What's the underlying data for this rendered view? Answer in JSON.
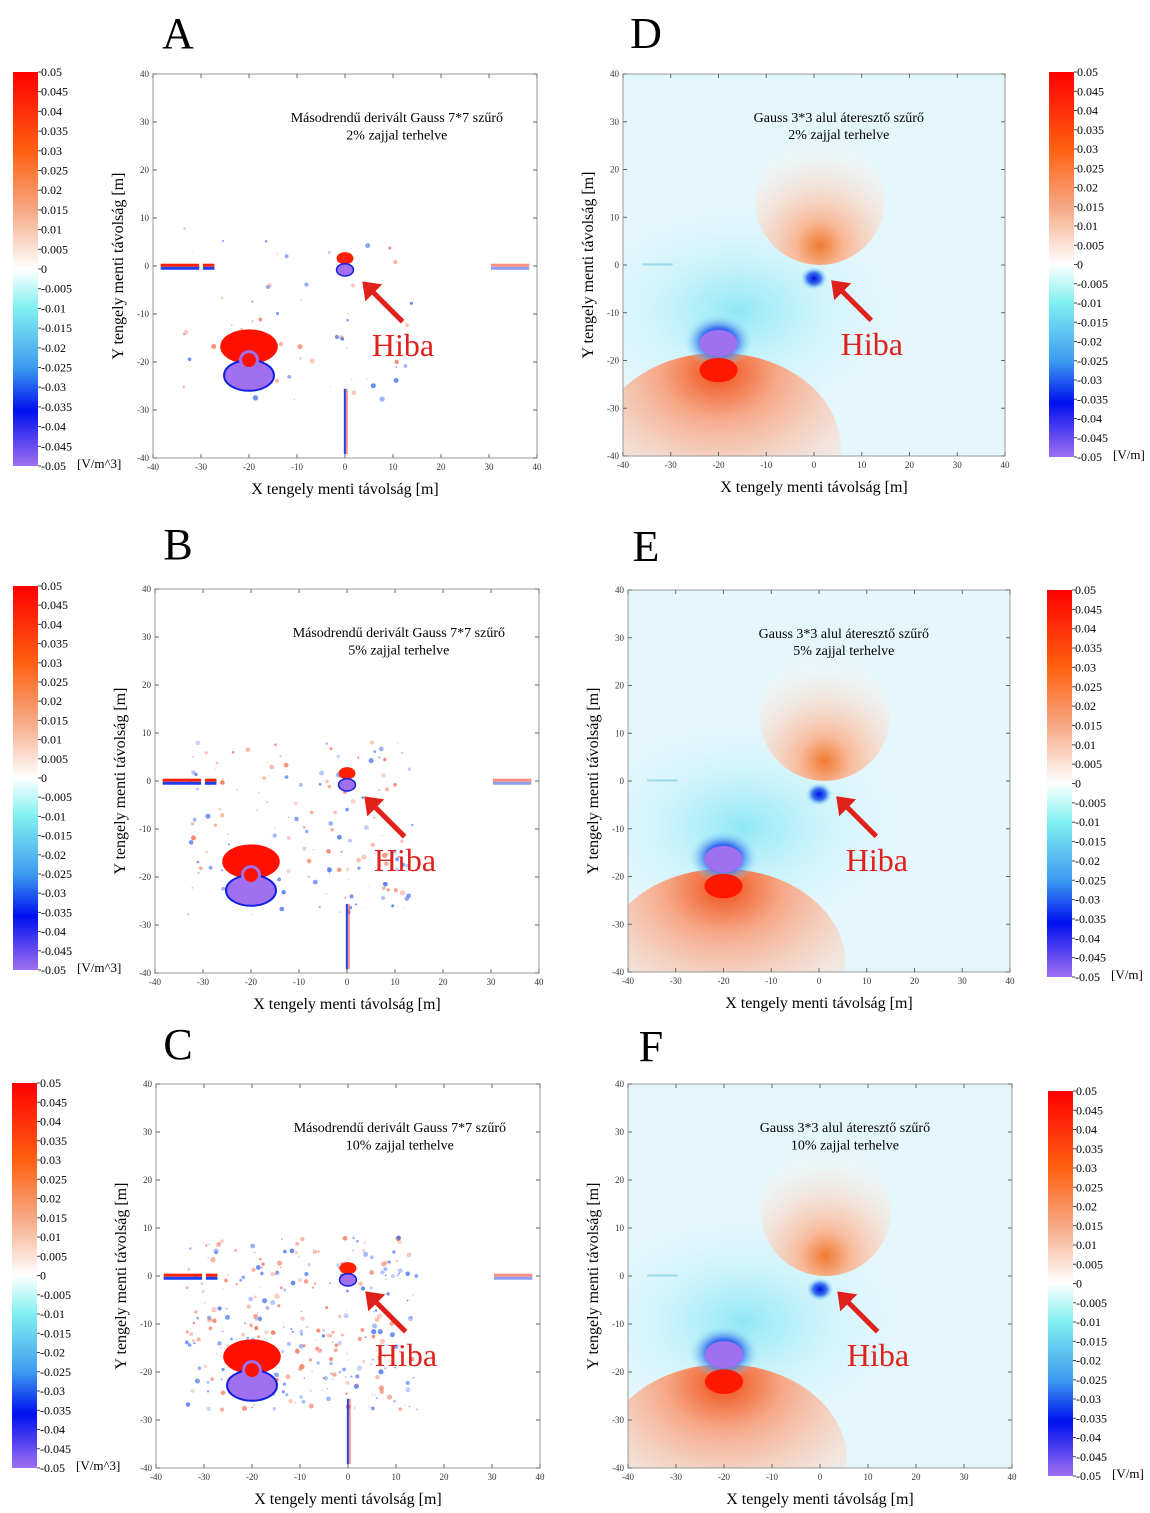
{
  "chart_data": [
    {
      "type": "heatmap",
      "title": "A",
      "annotation": [
        "Másodrendű derivált Gauss 7*7 szűrő",
        "2% zajjal terhelve"
      ],
      "arrow_label": "Hiba",
      "xlabel": "X tengely menti távolság [m]",
      "ylabel": "Y tengely menti távolság [m]",
      "xlim": [
        -40,
        40
      ],
      "ylim": [
        -40,
        40
      ],
      "xticks": [
        -40,
        -30,
        -20,
        -10,
        0,
        10,
        20,
        30,
        40
      ],
      "yticks": [
        -40,
        -30,
        -20,
        -10,
        0,
        10,
        20,
        30,
        40
      ],
      "clim": [
        -0.05,
        0.05
      ],
      "cticks": [
        0.05,
        0.045,
        0.04,
        0.035,
        0.03,
        0.025,
        0.02,
        0.015,
        0.01,
        0.005,
        0,
        -0.005,
        -0.01,
        -0.015,
        -0.02,
        -0.025,
        -0.03,
        -0.035,
        -0.04,
        -0.045,
        -0.05
      ],
      "colorbar_label": "[V/m^3]"
    },
    {
      "type": "heatmap",
      "title": "B",
      "annotation": [
        "Másodrendű derivált Gauss 7*7 szűrő",
        "5% zajjal terhelve"
      ],
      "arrow_label": "Hiba",
      "xlabel": "X tengely menti távolság [m]",
      "ylabel": "Y tengely menti távolság [m]",
      "xlim": [
        -40,
        40
      ],
      "ylim": [
        -40,
        40
      ],
      "xticks": [
        -40,
        -30,
        -20,
        -10,
        0,
        10,
        20,
        30,
        40
      ],
      "yticks": [
        -40,
        -30,
        -20,
        -10,
        0,
        10,
        20,
        30,
        40
      ],
      "clim": [
        -0.05,
        0.05
      ],
      "cticks": [
        0.05,
        0.045,
        0.04,
        0.035,
        0.03,
        0.025,
        0.02,
        0.015,
        0.01,
        0.005,
        0,
        -0.005,
        -0.01,
        -0.015,
        -0.02,
        -0.025,
        -0.03,
        -0.035,
        -0.04,
        -0.045,
        -0.05
      ],
      "colorbar_label": "[V/m^3]"
    },
    {
      "type": "heatmap",
      "title": "C",
      "annotation": [
        "Másodrendű derivált Gauss 7*7 szűrő",
        "10% zajjal terhelve"
      ],
      "arrow_label": "Hiba",
      "xlabel": "X tengely menti távolság [m]",
      "ylabel": "Y tengely menti távolság [m]",
      "xlim": [
        -40,
        40
      ],
      "ylim": [
        -40,
        40
      ],
      "xticks": [
        -40,
        -30,
        -20,
        -10,
        0,
        10,
        20,
        30,
        40
      ],
      "yticks": [
        -40,
        -30,
        -20,
        -10,
        0,
        10,
        20,
        30,
        40
      ],
      "clim": [
        -0.05,
        0.05
      ],
      "cticks": [
        0.05,
        0.045,
        0.04,
        0.035,
        0.03,
        0.025,
        0.02,
        0.015,
        0.01,
        0.005,
        0,
        -0.005,
        -0.01,
        -0.015,
        -0.02,
        -0.025,
        -0.03,
        -0.035,
        -0.04,
        -0.045,
        -0.05
      ],
      "colorbar_label": "[V/m^3]"
    },
    {
      "type": "heatmap",
      "title": "D",
      "annotation": [
        "Gauss 3*3 alul áteresztő szűrő",
        "2% zajjal terhelve"
      ],
      "arrow_label": "Hiba",
      "xlabel": "X tengely menti távolság [m]",
      "ylabel": "Y tengely menti távolság [m]",
      "xlim": [
        -40,
        40
      ],
      "ylim": [
        -40,
        40
      ],
      "xticks": [
        -40,
        -30,
        -20,
        -10,
        0,
        10,
        20,
        30,
        40
      ],
      "yticks": [
        -40,
        -30,
        -20,
        -10,
        0,
        10,
        20,
        30,
        40
      ],
      "clim": [
        -0.05,
        0.05
      ],
      "cticks": [
        0.05,
        0.045,
        0.04,
        0.035,
        0.03,
        0.025,
        0.02,
        0.015,
        0.01,
        0.005,
        0,
        -0.005,
        -0.01,
        -0.015,
        -0.02,
        -0.025,
        -0.03,
        -0.035,
        -0.04,
        -0.045,
        -0.05
      ],
      "colorbar_label": "[V/m]"
    },
    {
      "type": "heatmap",
      "title": "E",
      "annotation": [
        "Gauss 3*3 alul áteresztő szűrő",
        "5% zajjal terhelve"
      ],
      "arrow_label": "Hiba",
      "xlabel": "X tengely menti távolság [m]",
      "ylabel": "Y tengely menti távolság [m]",
      "xlim": [
        -40,
        40
      ],
      "ylim": [
        -40,
        40
      ],
      "xticks": [
        -40,
        -30,
        -20,
        -10,
        0,
        10,
        20,
        30,
        40
      ],
      "yticks": [
        -40,
        -30,
        -20,
        -10,
        0,
        10,
        20,
        30,
        40
      ],
      "clim": [
        -0.05,
        0.05
      ],
      "cticks": [
        0.05,
        0.045,
        0.04,
        0.035,
        0.03,
        0.025,
        0.02,
        0.015,
        0.01,
        0.005,
        0,
        -0.005,
        -0.01,
        -0.015,
        -0.02,
        -0.025,
        -0.03,
        -0.035,
        -0.04,
        -0.045,
        -0.05
      ],
      "colorbar_label": "[V/m]"
    },
    {
      "type": "heatmap",
      "title": "F",
      "annotation": [
        "Gauss 3*3 alul áteresztő szűrő",
        "10% zajjal terhelve"
      ],
      "arrow_label": "Hiba",
      "xlabel": "X tengely menti távolság [m]",
      "ylabel": "Y tengely menti távolság [m]",
      "xlim": [
        -40,
        40
      ],
      "ylim": [
        -40,
        40
      ],
      "xticks": [
        -40,
        -30,
        -20,
        -10,
        0,
        10,
        20,
        30,
        40
      ],
      "yticks": [
        -40,
        -30,
        -20,
        -10,
        0,
        10,
        20,
        30,
        40
      ],
      "clim": [
        -0.05,
        0.05
      ],
      "cticks": [
        0.05,
        0.045,
        0.04,
        0.035,
        0.03,
        0.025,
        0.02,
        0.015,
        0.01,
        0.005,
        0,
        -0.005,
        -0.01,
        -0.015,
        -0.02,
        -0.025,
        -0.03,
        -0.035,
        -0.04,
        -0.045,
        -0.05
      ],
      "colorbar_label": "[V/m]"
    }
  ]
}
